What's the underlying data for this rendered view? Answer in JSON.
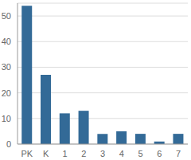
{
  "chart_data": {
    "type": "bar",
    "categories": [
      "PK",
      "K",
      "1",
      "2",
      "3",
      "4",
      "5",
      "6",
      "7"
    ],
    "values": [
      54,
      27,
      12,
      13,
      4,
      5,
      4,
      1,
      4
    ],
    "color": "#336a97",
    "ylim": [
      0,
      55
    ],
    "yticks": [
      0,
      10,
      20,
      30,
      40,
      50
    ],
    "grid": true
  }
}
